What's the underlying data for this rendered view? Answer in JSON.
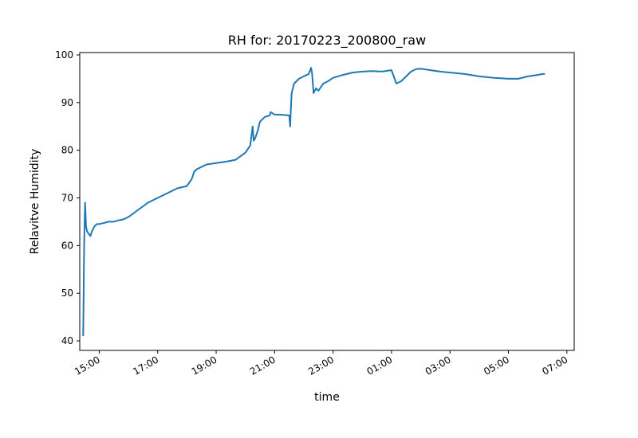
{
  "chart_data": {
    "type": "line",
    "title": "RH for: 20170223_200800_raw",
    "xlabel": "time",
    "ylabel": "Relavitve Humidity",
    "ylim": [
      38,
      100.5
    ],
    "xlim": [
      "14:20",
      "07:15"
    ],
    "grid": false,
    "colors": {
      "line": "#1f77b4"
    },
    "x_ticks": [
      "15:00",
      "17:00",
      "19:00",
      "21:00",
      "23:00",
      "01:00",
      "03:00",
      "05:00",
      "07:00"
    ],
    "y_ticks": [
      40,
      50,
      60,
      70,
      80,
      90,
      100
    ],
    "series": [
      {
        "x": [
          "14:27",
          "14:28",
          "14:29",
          "14:30",
          "14:31",
          "14:33",
          "14:35",
          "14:38",
          "14:42",
          "14:45",
          "14:50",
          "14:55",
          "15:00",
          "15:20",
          "15:30",
          "15:40",
          "15:50",
          "16:00",
          "16:20",
          "16:40",
          "17:00",
          "17:20",
          "17:40",
          "18:00",
          "18:10",
          "18:15",
          "18:20",
          "18:40",
          "19:00",
          "19:20",
          "19:40",
          "20:00",
          "20:10",
          "20:15",
          "20:17",
          "20:20",
          "20:25",
          "20:30",
          "20:40",
          "20:50",
          "20:52",
          "21:00",
          "21:20",
          "21:30",
          "21:32",
          "21:33",
          "21:35",
          "21:40",
          "21:50",
          "22:00",
          "22:10",
          "22:15",
          "22:17",
          "22:20",
          "22:25",
          "22:30",
          "22:40",
          "22:50",
          "23:00",
          "23:20",
          "23:40",
          "00:00",
          "00:20",
          "00:40",
          "01:00",
          "01:10",
          "01:20",
          "01:30",
          "01:40",
          "01:50",
          "02:00",
          "02:20",
          "02:40",
          "03:00",
          "03:30",
          "04:00",
          "04:30",
          "05:00",
          "05:20",
          "05:40",
          "06:00",
          "06:10",
          "06:15"
        ],
        "values": [
          41,
          50,
          60,
          65,
          69,
          64,
          63,
          62.5,
          62,
          63,
          64,
          64.5,
          64.5,
          65,
          65,
          65.3,
          65.5,
          66,
          67.5,
          69,
          70,
          71,
          72,
          72.5,
          74,
          75.5,
          76,
          77,
          77.3,
          77.6,
          78,
          79.5,
          81,
          85,
          82,
          82.5,
          84,
          86,
          87,
          87.3,
          88,
          87.5,
          87.4,
          87.3,
          85,
          88,
          92,
          94,
          95,
          95.5,
          96,
          97.3,
          96,
          92,
          93,
          92.5,
          94,
          94.5,
          95.2,
          95.8,
          96.3,
          96.5,
          96.6,
          96.5,
          96.8,
          94,
          94.5,
          95.5,
          96.5,
          97,
          97.1,
          96.8,
          96.5,
          96.3,
          96,
          95.5,
          95.2,
          95,
          95,
          95.5,
          95.8,
          96,
          96
        ]
      }
    ]
  }
}
